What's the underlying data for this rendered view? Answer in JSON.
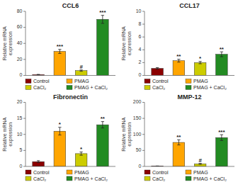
{
  "chart_data": [
    {
      "type": "bar",
      "title": "CCL6",
      "ylabel": "Relative mRNA\nexpression",
      "categories": [
        "Control",
        "PMAG",
        "CaCl₂",
        "PMAG + CaCl₂"
      ],
      "values": [
        1.0,
        30.0,
        6.0,
        70.0
      ],
      "errors": [
        0.3,
        2.5,
        0.8,
        5.0
      ],
      "colors": [
        "#8B0000",
        "#FFA500",
        "#CCCC00",
        "#228B22"
      ],
      "ylim": [
        0,
        80
      ],
      "yticks": [
        0,
        20,
        40,
        60,
        80
      ],
      "annotations": [
        {
          "category": "PMAG",
          "text": "***"
        },
        {
          "category": "CaCl₂",
          "text": "#"
        },
        {
          "category": "PMAG + CaCl₂",
          "text": "***"
        }
      ],
      "grid": false,
      "legend": "bottom",
      "tick_labels": "y"
    },
    {
      "type": "bar",
      "title": "CCL17",
      "ylabel": "Relative mRNA\nexpression",
      "categories": [
        "Control",
        "PMAG",
        "CaCl₂",
        "PMAG + CaCl₂"
      ],
      "values": [
        1.1,
        2.3,
        2.0,
        3.3
      ],
      "errors": [
        0.12,
        0.22,
        0.18,
        0.38
      ],
      "colors": [
        "#8B0000",
        "#FFA500",
        "#CCCC00",
        "#228B22"
      ],
      "ylim": [
        0,
        10
      ],
      "yticks": [
        0,
        2,
        4,
        6,
        8,
        10
      ],
      "annotations": [
        {
          "category": "PMAG",
          "text": "**"
        },
        {
          "category": "CaCl₂",
          "text": "*"
        },
        {
          "category": "PMAG + CaCl₂",
          "text": "**"
        }
      ],
      "grid": false,
      "legend": "bottom",
      "tick_labels": "y"
    },
    {
      "type": "bar",
      "title": "Fibronectin",
      "ylabel": "Relative mRNA\nexpression",
      "categories": [
        "Control",
        "PMAG",
        "CaCl₂",
        "PMAG + CaCl₂"
      ],
      "values": [
        1.5,
        11.0,
        4.0,
        13.0
      ],
      "errors": [
        0.3,
        1.2,
        0.5,
        1.0
      ],
      "colors": [
        "#8B0000",
        "#FFA500",
        "#CCCC00",
        "#228B22"
      ],
      "ylim": [
        0,
        20
      ],
      "yticks": [
        0,
        5,
        10,
        15,
        20
      ],
      "annotations": [
        {
          "category": "PMAG",
          "text": "*"
        },
        {
          "category": "CaCl₂",
          "text": "*"
        },
        {
          "category": "PMAG + CaCl₂",
          "text": "**"
        }
      ],
      "grid": false,
      "legend": "bottom",
      "tick_labels": "y"
    },
    {
      "type": "bar",
      "title": "MMP-12",
      "ylabel": "Relative mRNA\nexpression",
      "categories": [
        "Control",
        "PMAG",
        "CaCl₂",
        "PMAG + CaCl₂"
      ],
      "values": [
        1.0,
        75.0,
        8.0,
        90.0
      ],
      "errors": [
        0.5,
        8.0,
        1.5,
        9.0
      ],
      "colors": [
        "#8B0000",
        "#FFA500",
        "#CCCC00",
        "#228B22"
      ],
      "ylim": [
        0,
        200
      ],
      "yticks": [
        0,
        50,
        100,
        150,
        200
      ],
      "annotations": [
        {
          "category": "PMAG",
          "text": "**"
        },
        {
          "category": "CaCl₂",
          "text": "#"
        },
        {
          "category": "PMAG + CaCl₂",
          "text": "***"
        }
      ],
      "grid": false,
      "legend": "bottom",
      "tick_labels": "y"
    }
  ]
}
